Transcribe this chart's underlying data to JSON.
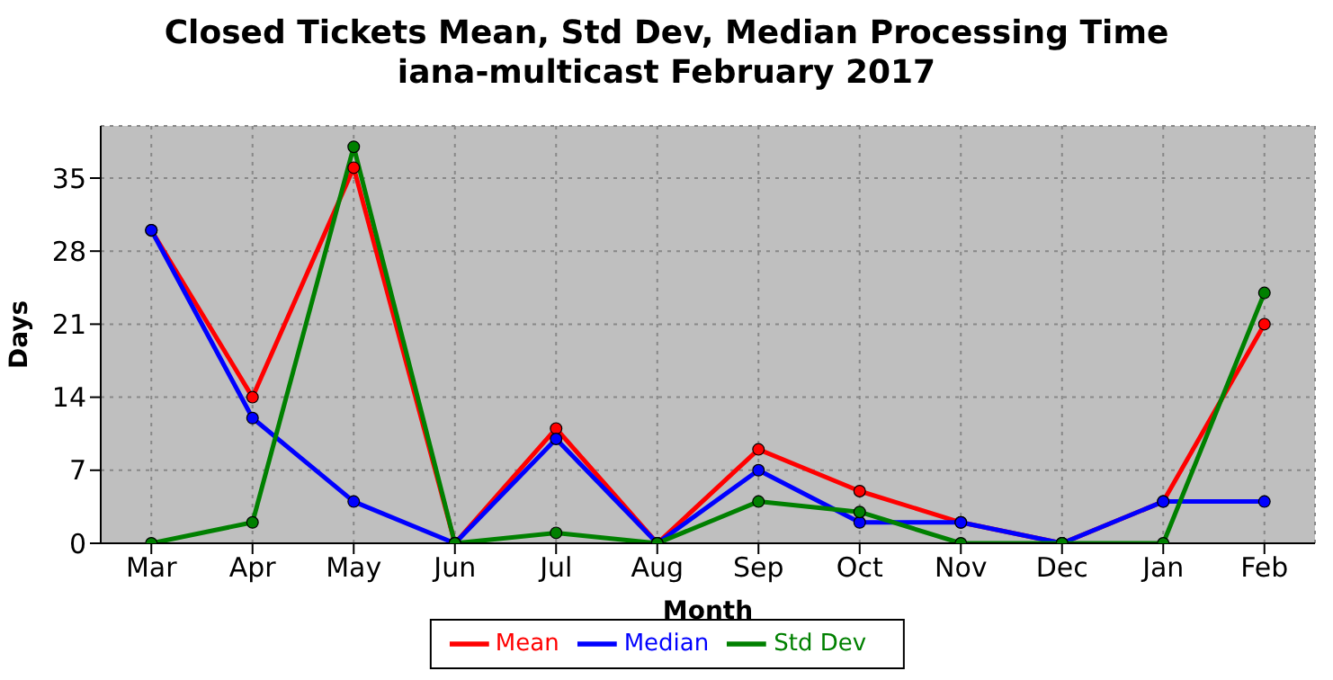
{
  "chart_data": {
    "type": "line",
    "title": "Closed Tickets Mean, Std Dev, Median Processing Time",
    "subtitle": "iana-multicast February 2017",
    "xlabel": "Month",
    "ylabel": "Days",
    "categories": [
      "Mar",
      "Apr",
      "May",
      "Jun",
      "Jul",
      "Aug",
      "Sep",
      "Oct",
      "Nov",
      "Dec",
      "Jan",
      "Feb"
    ],
    "series": [
      {
        "name": "Mean",
        "color": "#ff0000",
        "values": [
          30,
          14,
          36,
          0,
          11,
          0,
          9,
          5,
          2,
          0,
          4,
          21
        ]
      },
      {
        "name": "Median",
        "color": "#0000ff",
        "values": [
          30,
          12,
          4,
          0,
          10,
          0,
          7,
          2,
          2,
          0,
          4,
          4
        ]
      },
      {
        "name": "Std Dev",
        "color": "#008000",
        "values": [
          0,
          2,
          38,
          0,
          1,
          0,
          4,
          3,
          0,
          0,
          0,
          24
        ]
      }
    ],
    "ylim": [
      0,
      40
    ],
    "yticks": [
      0,
      7,
      14,
      21,
      28,
      35
    ],
    "grid": true,
    "legend": "bottom",
    "marker": "circle",
    "line_style": "solid"
  }
}
